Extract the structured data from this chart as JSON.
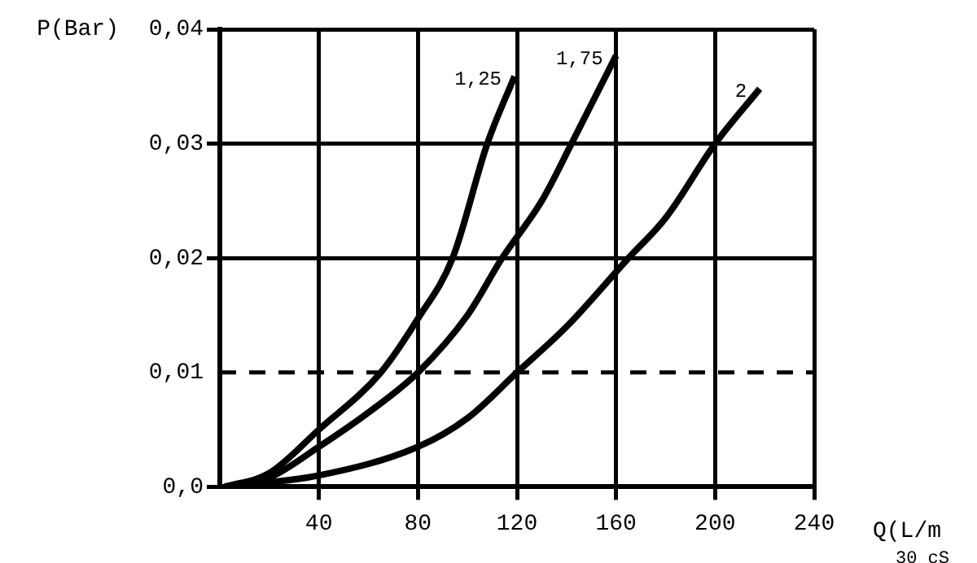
{
  "chart_data": {
    "type": "line",
    "xlabel": "Q(L/m",
    "ylabel": "P(Bar)",
    "annotations": [
      "30 cS"
    ],
    "xlim": [
      0,
      240
    ],
    "xticks": [
      40,
      80,
      120,
      160,
      200,
      240
    ],
    "ylim": [
      0,
      0.04
    ],
    "yticks": [
      {
        "value": 0,
        "label": "0,0"
      },
      {
        "value": 0.01,
        "label": "0,01"
      },
      {
        "value": 0.02,
        "label": "0,02"
      },
      {
        "value": 0.03,
        "label": "0,03"
      },
      {
        "value": 0.04,
        "label": "0,04"
      }
    ],
    "grid": true,
    "legend": false,
    "marker": "none",
    "line_style": "solid",
    "ref_lines": [
      {
        "axis": "y",
        "value": 0.01,
        "line_style": "dashed",
        "color": "#000000"
      }
    ],
    "series": [
      {
        "name": "1,25",
        "color": "#000000",
        "x": [
          2,
          20,
          40,
          65,
          80,
          94,
          108,
          119
        ],
        "values": [
          0,
          0.0012,
          0.005,
          0.01,
          0.0147,
          0.02,
          0.03,
          0.0359
        ]
      },
      {
        "name": "1,75",
        "color": "#000000",
        "x": [
          2,
          20,
          40,
          60,
          80,
          100,
          114,
          130,
          142,
          160
        ],
        "values": [
          0,
          0.0008,
          0.0035,
          0.0065,
          0.01,
          0.015,
          0.02,
          0.025,
          0.03,
          0.0377
        ]
      },
      {
        "name": "2",
        "color": "#000000",
        "x": [
          2,
          40,
          80,
          100,
          120,
          140,
          165,
          180,
          200,
          218
        ],
        "values": [
          0,
          0.001,
          0.0035,
          0.006,
          0.01,
          0.014,
          0.02,
          0.0235,
          0.03,
          0.0348
        ]
      }
    ]
  }
}
